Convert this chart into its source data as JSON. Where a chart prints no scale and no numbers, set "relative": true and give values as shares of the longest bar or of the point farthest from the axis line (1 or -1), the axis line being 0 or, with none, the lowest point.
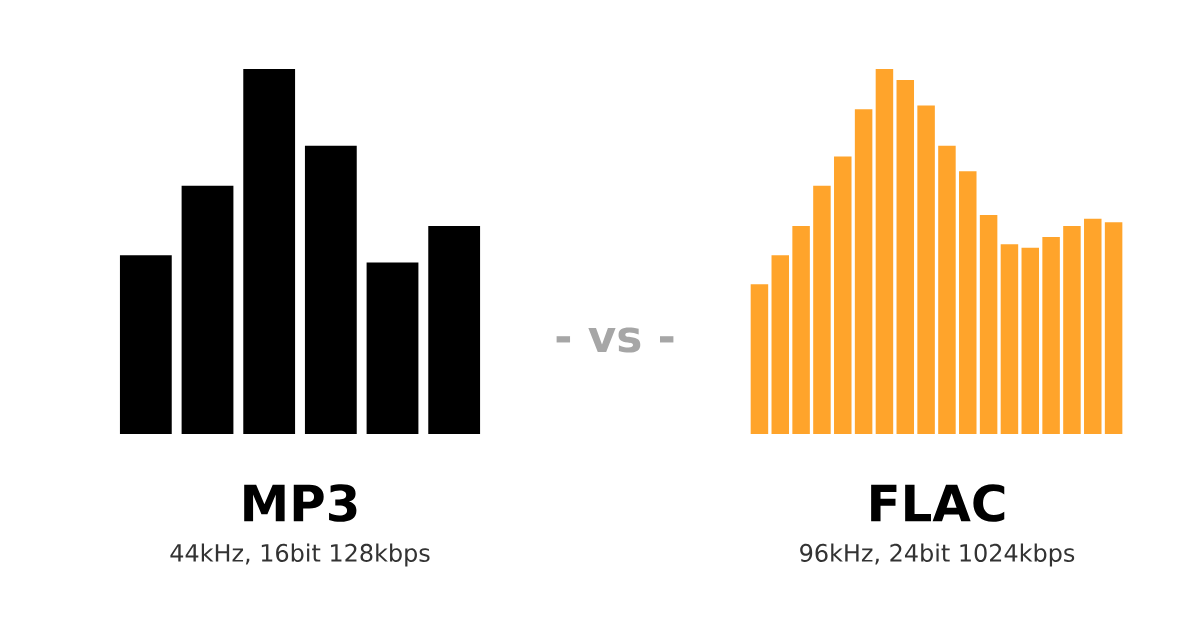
{
  "chart_data": [
    {
      "type": "bar",
      "title": "MP3",
      "subtitle": "44kHz, 16bit 128kbps",
      "relative": true,
      "color": "#000000",
      "categories": [
        null,
        null,
        null,
        null,
        null,
        null
      ],
      "values": [
        0.49,
        0.68,
        1,
        0.79,
        0.47,
        0.57
      ]
    },
    {
      "type": "other",
      "title": "- vs -"
    },
    {
      "type": "bar",
      "title": "FLAC",
      "subtitle": "96kHz, 24bit 1024kbps",
      "relative": true,
      "color": "#ffa42b",
      "categories": [
        null,
        null,
        null,
        null,
        null,
        null,
        null,
        null,
        null,
        null,
        null,
        null,
        null,
        null,
        null,
        null,
        null,
        null
      ],
      "values": [
        0.41,
        0.49,
        0.57,
        0.68,
        0.76,
        0.89,
        1,
        0.97,
        0.9,
        0.79,
        0.72,
        0.6,
        0.52,
        0.51,
        0.54,
        0.57,
        0.59,
        0.58
      ]
    }
  ]
}
